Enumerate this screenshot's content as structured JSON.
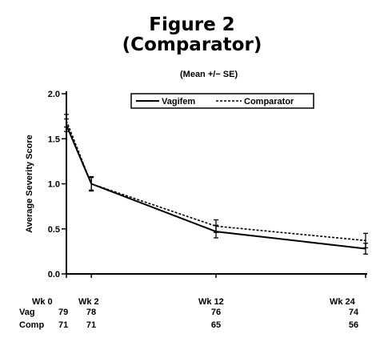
{
  "chart_data": {
    "type": "line",
    "title": "Figure 2",
    "subtitle": "(Comparator)",
    "note": "(Mean +/− SE)",
    "ylabel": "Average Severity Score",
    "ylim": [
      0,
      2.0
    ],
    "yticks": [
      "0.0",
      "0.5",
      "1.0",
      "1.5",
      "2.0"
    ],
    "ytick_values": [
      0,
      0.5,
      1.0,
      1.5,
      2.0
    ],
    "x_weeks": [
      0,
      2,
      12,
      24
    ],
    "x_labels": [
      "Wk 0",
      "Wk 2",
      "Wk 12",
      "Wk 24"
    ],
    "legend_position": "top",
    "series": [
      {
        "name": "Vagifem",
        "style": "solid",
        "values": [
          1.65,
          1.0,
          0.47,
          0.28
        ],
        "se": [
          0.07,
          0.08,
          0.07,
          0.06
        ]
      },
      {
        "name": "Comparator",
        "style": "dashed",
        "values": [
          1.7,
          1.0,
          0.53,
          0.37
        ],
        "se": [
          0.07,
          0.07,
          0.07,
          0.08
        ]
      }
    ],
    "table": {
      "rows": [
        {
          "label": "Vag",
          "values": [
            "79",
            "78",
            "76",
            "74"
          ]
        },
        {
          "label": "Comp",
          "values": [
            "71",
            "71",
            "65",
            "56"
          ]
        }
      ]
    }
  }
}
